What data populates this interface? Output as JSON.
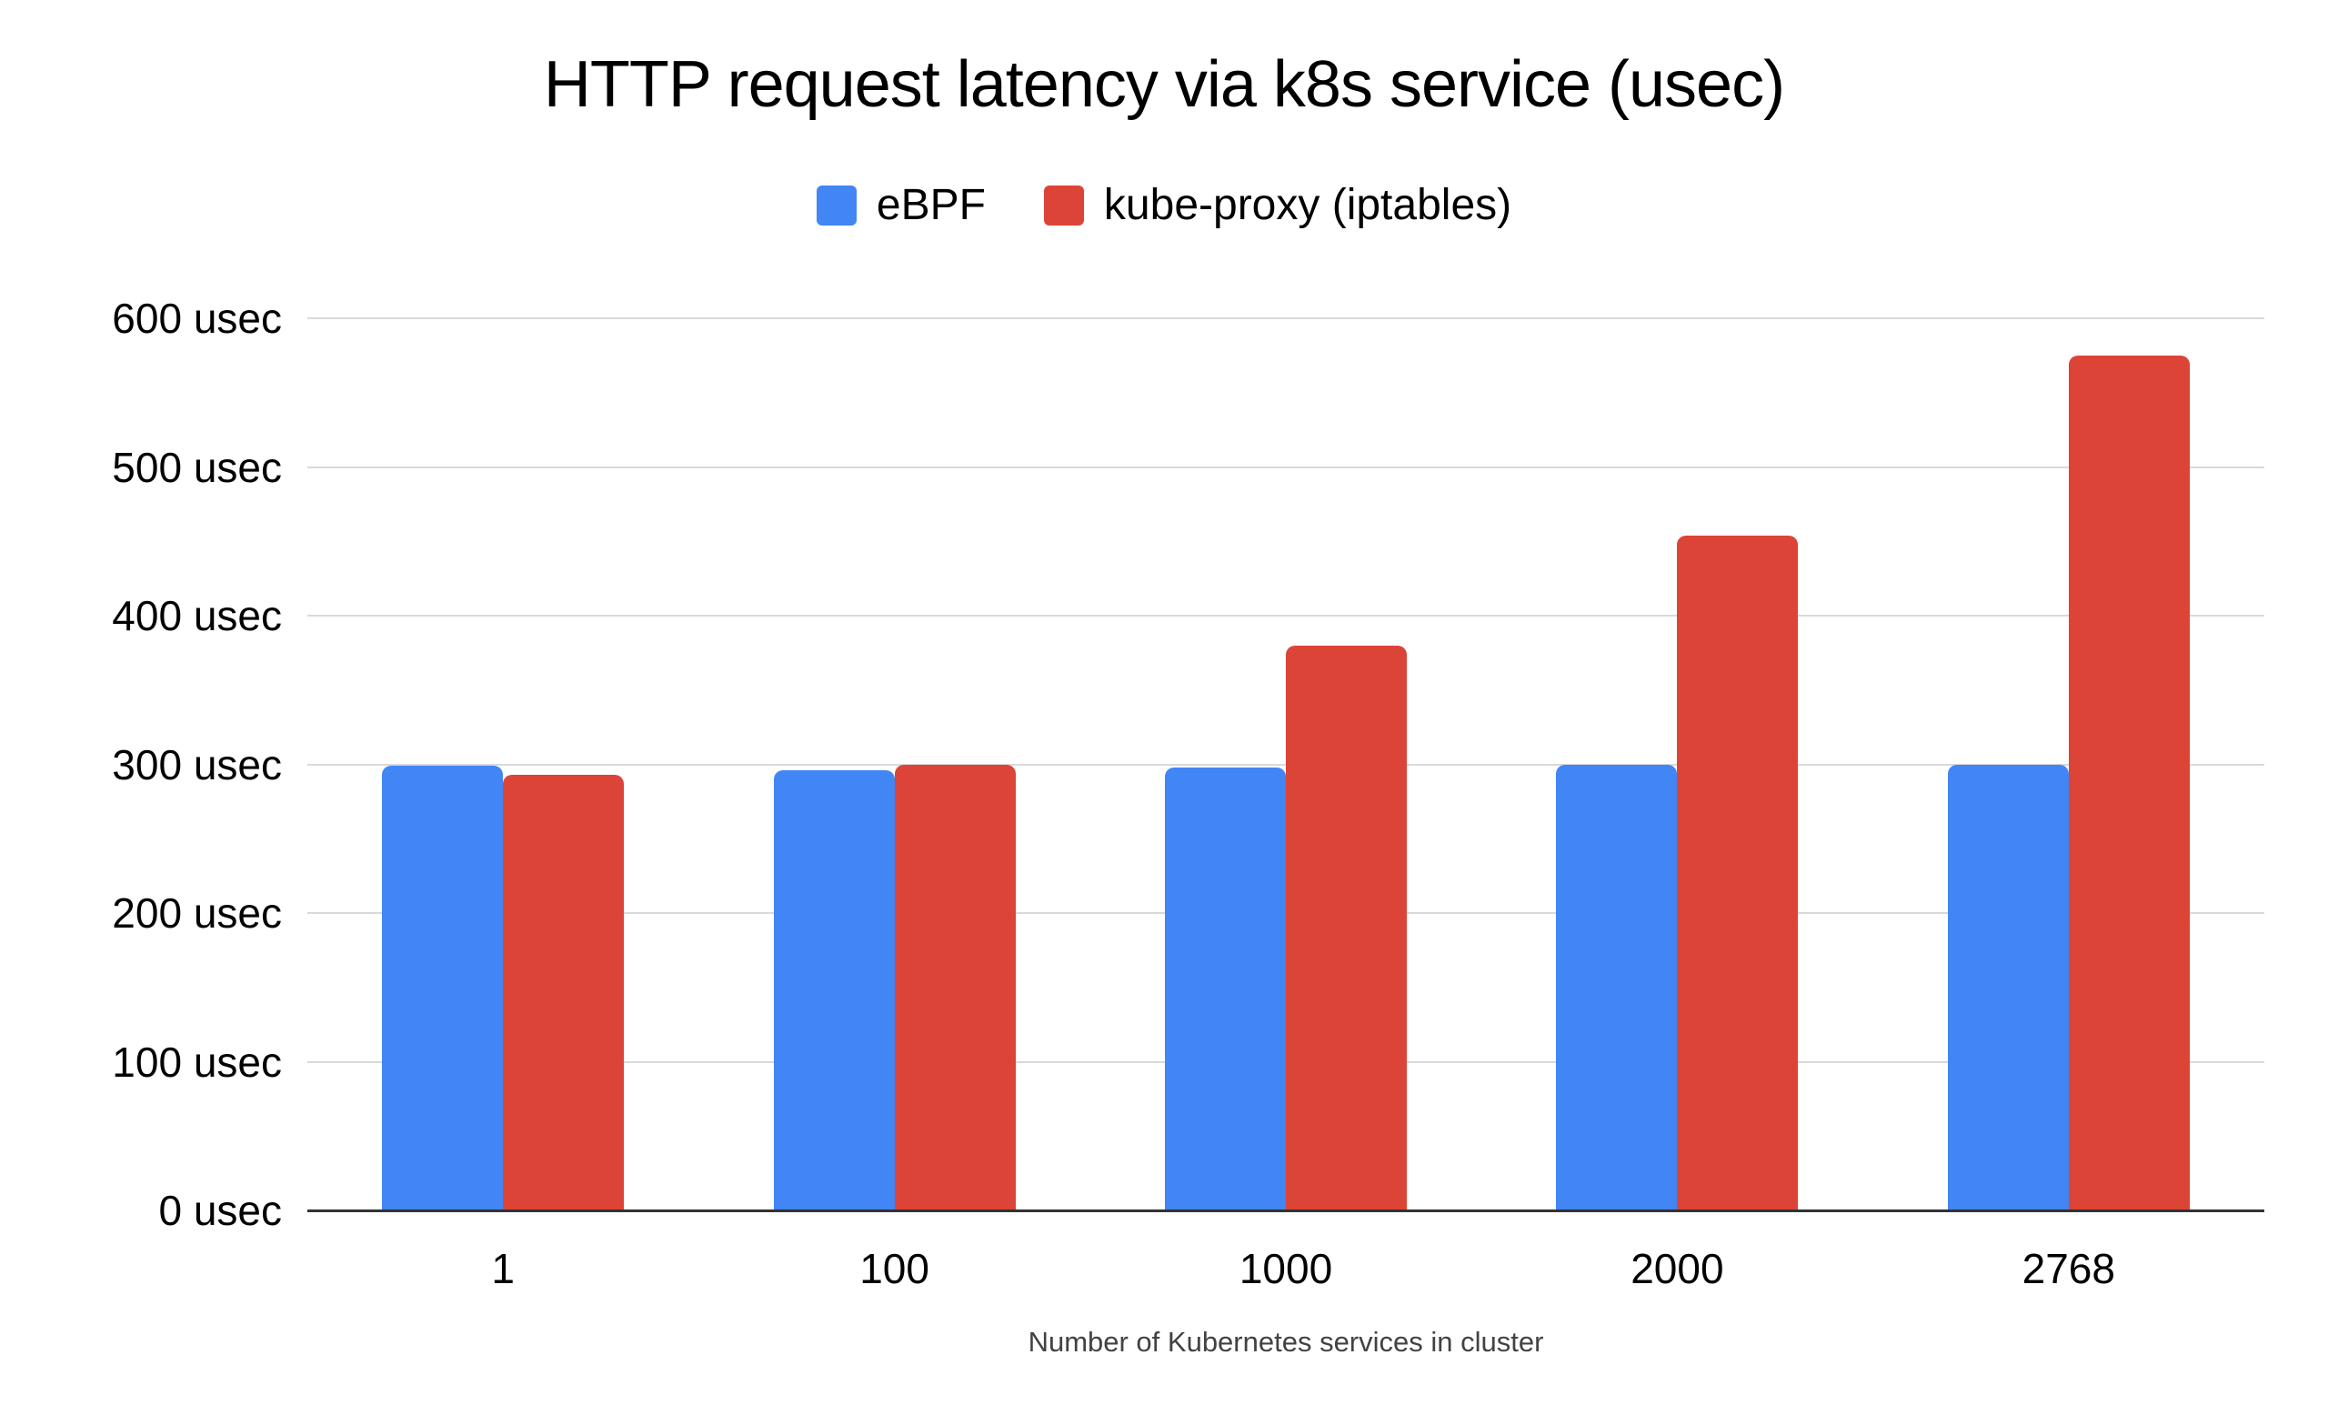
{
  "chart_data": {
    "type": "bar",
    "title": "HTTP request latency via k8s service (usec)",
    "categories": [
      "1",
      "100",
      "1000",
      "2000",
      "2768"
    ],
    "series": [
      {
        "name": "eBPF",
        "color": "#4285F4",
        "values": [
          299,
          296,
          298,
          300,
          300
        ]
      },
      {
        "name": "kube-proxy (iptables)",
        "color": "#DB4437",
        "values": [
          293,
          300,
          380,
          454,
          575
        ]
      }
    ],
    "xlabel": "Number of Kubernetes services in cluster",
    "ylabel": "",
    "ylim": [
      0,
      600
    ],
    "ytick_step": 100,
    "ytick_suffix": " usec",
    "grid": "horizontal",
    "legend_position": "top"
  },
  "colors": {
    "background": "#ffffff",
    "gridline": "#d9d9d9",
    "baseline": "#333333",
    "title_text": "#000000",
    "tick_text": "#000000",
    "xaxis_title_text": "#424242"
  }
}
